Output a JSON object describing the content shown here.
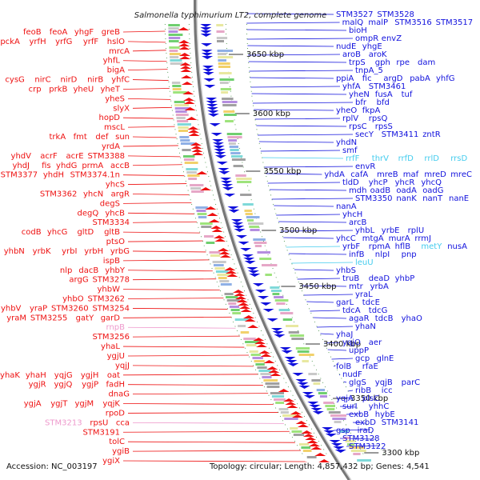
{
  "title": "Salmonella typhimurium LT2, complete genome",
  "footer": {
    "accession": "Accession: NC_003197",
    "topology": "Topology: circular; Length: 4,857,432 bp; Genes: 4,541"
  },
  "colors": {
    "reverse_strand": "#ee1111",
    "forward_strand": "#1111dd",
    "rna_reverse": "#ee99cc",
    "rna_forward": "#44ccee",
    "backbone": "#888888"
  },
  "scale_marks": [
    "3650 kbp",
    "3600 kbp",
    "3550 kbp",
    "3500 kbp",
    "3450 kbp",
    "3400 kbp",
    "3350 kbp",
    "3300 kbp"
  ],
  "left_labels": [
    [
      "feoB",
      "feoA",
      "yhgF",
      "greB"
    ],
    [
      "pckA",
      "yrfH",
      "yrfG",
      "yrfF",
      "hslO"
    ],
    [
      "mrcA"
    ],
    [
      "yhfL"
    ],
    [
      "bigA"
    ],
    [
      "cysG",
      "nirC",
      "nirD",
      "nirB",
      "yhfC"
    ],
    [
      "crp",
      "prkB",
      "yheU",
      "yheT"
    ],
    [
      "yheS"
    ],
    [
      "slyX"
    ],
    [
      "hopD"
    ],
    [
      "mscL"
    ],
    [
      "trkA",
      "fmt",
      "def",
      "sun"
    ],
    [
      "yrdA"
    ],
    [
      "yhdV",
      "acrF",
      "acrE",
      "STM3388"
    ],
    [
      "yhdJ",
      "fis",
      "yhdG",
      "prmA",
      "accB"
    ],
    [
      "STM3377",
      "yhdH",
      "STM3374.1n"
    ],
    [
      "yhcS"
    ],
    [
      "STM3362",
      "yhcN",
      "argR"
    ],
    [
      "degS"
    ],
    [
      "degQ",
      "yhcB"
    ],
    [
      "STM3334"
    ],
    [
      "codB",
      "yhcG",
      "gltD",
      "gltB"
    ],
    [
      "ptsO"
    ],
    [
      "yhbN",
      "yrbK",
      "yrbI",
      "yrbH",
      "yrbG"
    ],
    [
      "ispB"
    ],
    [
      "nlp",
      "dacB",
      "yhbY"
    ],
    [
      "argG",
      "STM3278"
    ],
    [
      "yhbW"
    ],
    [
      "yhbO",
      "STM3262"
    ],
    [
      "yhbV",
      "yraP",
      "STM3260",
      "STM3254"
    ],
    [
      "yhbU",
      "yraM",
      "STM3255",
      "gatY",
      "garD"
    ],
    [
      "rnpB"
    ],
    [
      "STM3256"
    ],
    [
      "yhaL"
    ],
    [
      "ygjU"
    ],
    [
      "yqjJ"
    ],
    [
      "yhaK",
      "yhaH",
      "yqjG",
      "ygjH",
      "oat"
    ],
    [
      "ygjR",
      "ygjQ",
      "ygjP",
      "fadH"
    ],
    [
      "dnaG"
    ],
    [
      "ygjA",
      "ygjT",
      "ygjM",
      "yqjK"
    ],
    [
      "rpoD"
    ],
    [
      "STM3213",
      "rpsU",
      "cca"
    ],
    [
      "STM3191"
    ],
    [
      "tolC"
    ],
    [
      "ygiB"
    ],
    [
      "ygiX"
    ]
  ],
  "right_labels": [
    [
      "STM3527",
      "STM3528"
    ],
    [
      "malQ",
      "malP",
      "STM3516",
      "STM3517"
    ],
    [
      "bioH"
    ],
    [
      "ompR",
      "envZ"
    ],
    [
      "nudE",
      "yhgE"
    ],
    [
      "aroB",
      "aroK"
    ],
    [
      "trpS",
      "gph",
      "rpe",
      "dam"
    ],
    [
      "tnpA_5"
    ],
    [
      "ppiA",
      "fic",
      "argD",
      "pabA",
      "yhfG"
    ],
    [
      "yhfA",
      "STM3461"
    ],
    [
      "yheN",
      "fusA",
      "tuf"
    ],
    [
      "bfr",
      "bfd"
    ],
    [
      "yheO",
      "fkpA"
    ],
    [
      "rplV",
      "rpsQ"
    ],
    [
      "rpsC",
      "rpsS"
    ],
    [
      "secY",
      "STM3411",
      "zntR"
    ],
    [
      "yhdN"
    ],
    [
      "smf"
    ],
    [
      "rrfF",
      "thrV",
      "rrfD",
      "rrlD",
      "rrsD"
    ],
    [
      "envR"
    ],
    [
      "yhdA",
      "cafA",
      "mreB",
      "maf",
      "mreD",
      "mreC"
    ],
    [
      "tldD",
      "yhcP",
      "yhcR",
      "yhcQ"
    ],
    [
      "mdh",
      "oadB",
      "oadA",
      "oadG"
    ],
    [
      "STM3350",
      "nanK",
      "nanT",
      "nanE"
    ],
    [
      "nanA"
    ],
    [
      "yhcH"
    ],
    [
      "arcB"
    ],
    [
      "yhbL",
      "yrbE",
      "rplU"
    ],
    [
      "yhcC",
      "mtgA",
      "murA",
      "rrmJ"
    ],
    [
      "yrbF",
      "rpmA",
      "hflB",
      "metY",
      "nusA"
    ],
    [
      "infB",
      "nlpI",
      "pnp"
    ],
    [
      "leuU"
    ],
    [
      "yhbS"
    ],
    [
      "truB",
      "deaD",
      "yhbP"
    ],
    [
      "mtr",
      "yrbA"
    ],
    [
      "yraL"
    ],
    [
      "garL",
      "tdcE"
    ],
    [
      "tdcA",
      "tdcG"
    ],
    [
      "agaR",
      "tdcB",
      "yhaO"
    ],
    [
      "yhaN"
    ],
    [
      "yhaJ"
    ],
    [
      "yqjO",
      "aer"
    ],
    [
      "uppP"
    ],
    [
      "gcp",
      "glnE"
    ],
    [
      "folB",
      "rfaE"
    ],
    [
      "nudF"
    ],
    [
      "glgS",
      "yqjB",
      "parC"
    ],
    [
      "ribB",
      "icc"
    ],
    [
      "yqjA",
      "plsC"
    ],
    [
      "surI",
      "yhhC"
    ],
    [
      "exbB",
      "hybE"
    ],
    [
      "exbD",
      "STM3141"
    ],
    [
      "gsp",
      "iraD"
    ],
    [
      "STM3128"
    ],
    [
      "STM3122"
    ]
  ]
}
